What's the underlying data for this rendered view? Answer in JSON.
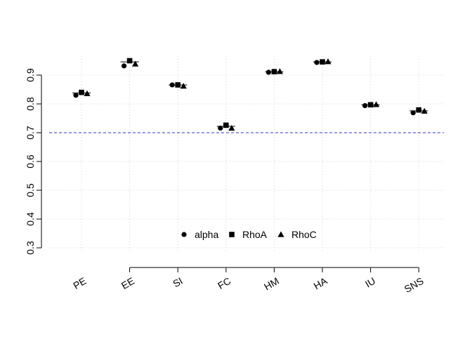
{
  "chart_data": {
    "type": "scatter",
    "categories": [
      "PE",
      "EE",
      "SI",
      "FC",
      "HM",
      "HA",
      "IU",
      "SNS"
    ],
    "series": [
      {
        "name": "alpha",
        "marker": "circle",
        "values": [
          0.83,
          0.932,
          0.866,
          0.716,
          0.91,
          0.944,
          0.794,
          0.769
        ]
      },
      {
        "name": "RhoA",
        "marker": "square",
        "values": [
          0.84,
          0.95,
          0.866,
          0.726,
          0.912,
          0.946,
          0.797,
          0.779
        ]
      },
      {
        "name": "RhoC",
        "marker": "triangle",
        "values": [
          0.836,
          0.939,
          0.862,
          0.716,
          0.913,
          0.947,
          0.798,
          0.775
        ]
      }
    ],
    "composite_reliability": [
      0.838,
      0.946,
      0.866,
      0.722,
      0.912,
      0.946,
      0.797,
      0.776
    ],
    "threshold": 0.7,
    "threshold_color": "#3333cc",
    "yticks": [
      0.3,
      0.4,
      0.5,
      0.6,
      0.7,
      0.8,
      0.9
    ],
    "ylim": [
      0.3,
      0.9
    ],
    "grid": true,
    "legend_position": "bottom-center",
    "title": "",
    "xlabel": "",
    "ylabel": ""
  }
}
